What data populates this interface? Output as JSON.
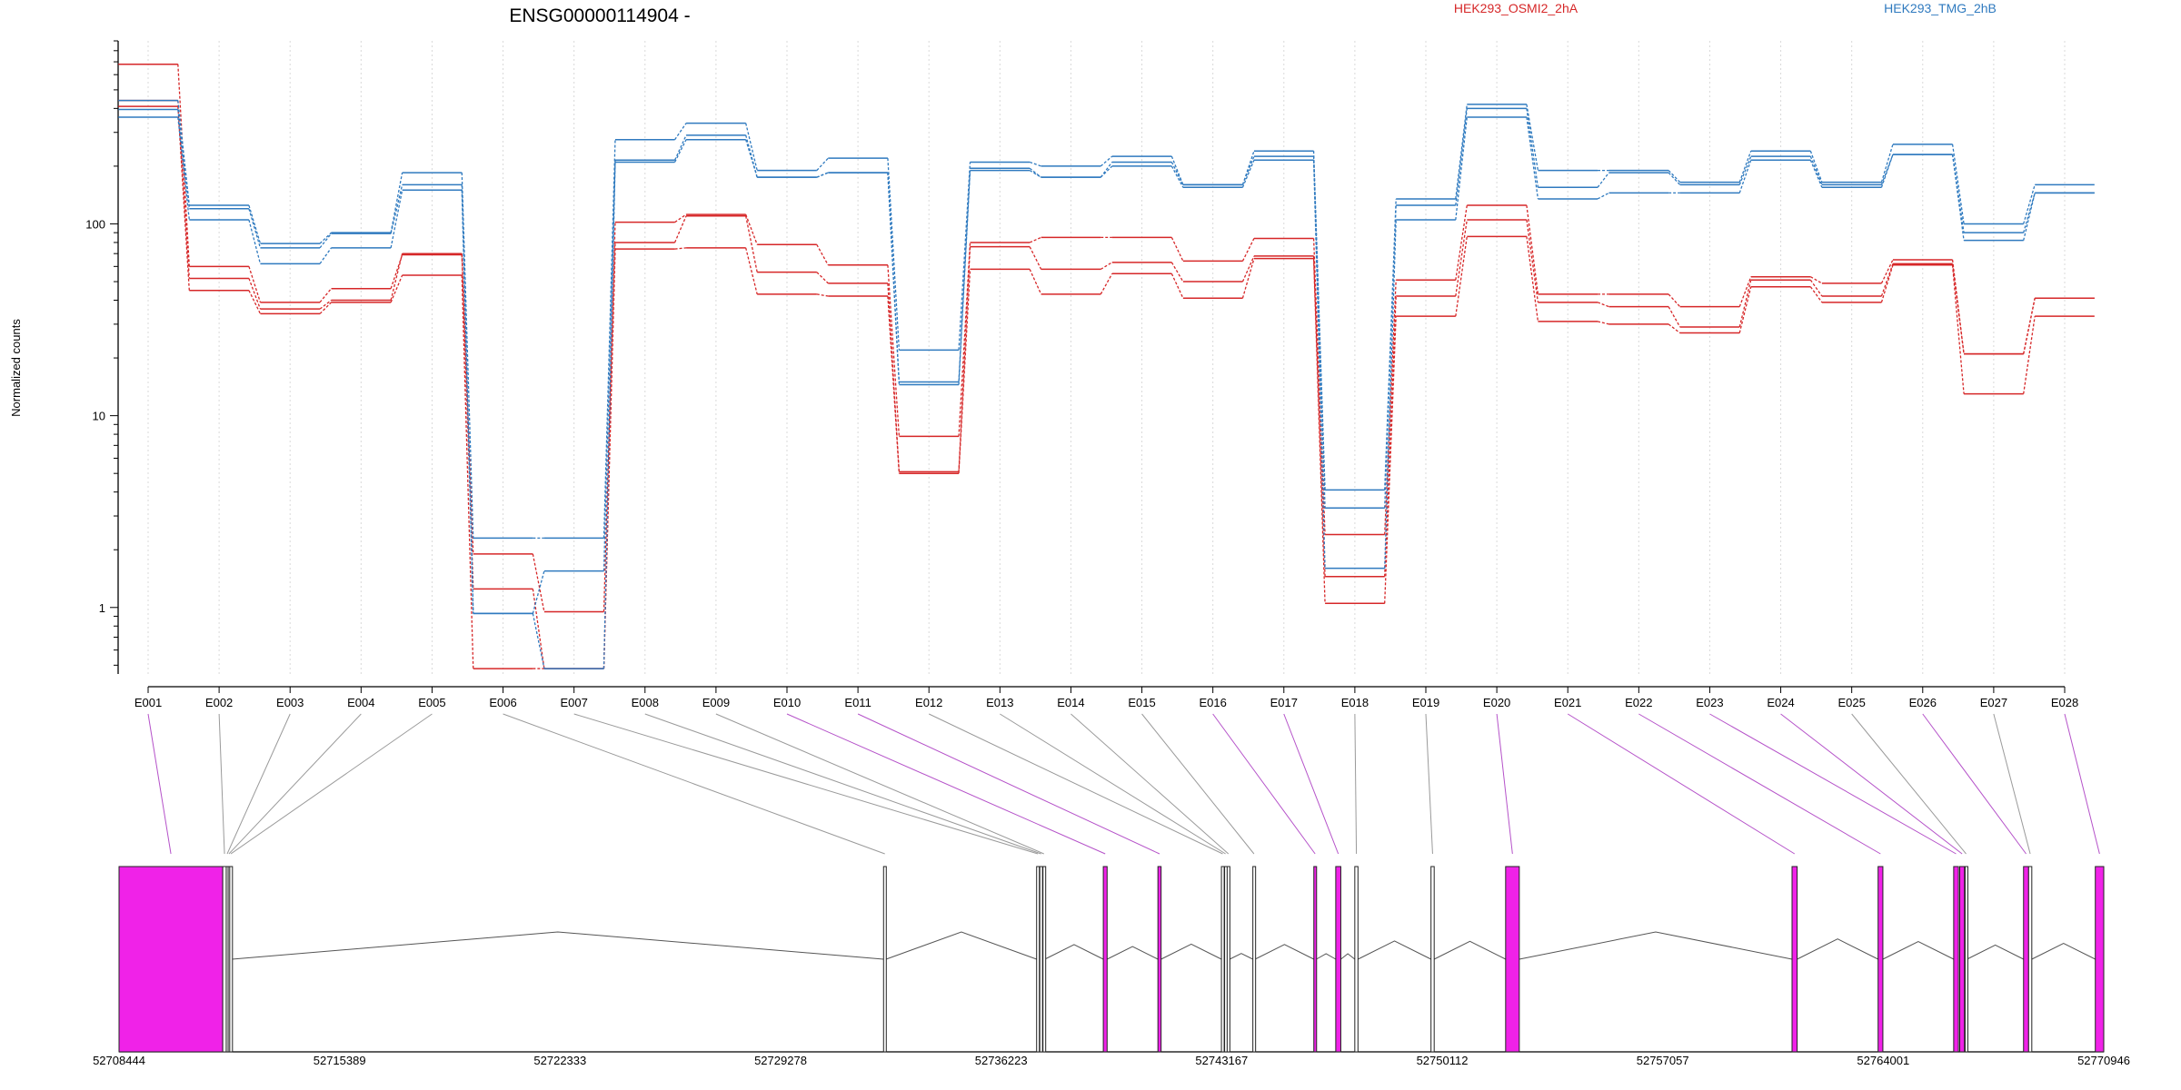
{
  "chart_data": {
    "type": "line",
    "title": "ENSG00000114904 -",
    "ylabel": "Normalized counts",
    "xlabel": "",
    "y_scale": "log",
    "y_ticks": [
      1,
      10,
      100
    ],
    "ylim": [
      0.45,
      900
    ],
    "grid": "vertical dotted at each exon",
    "legend": [
      {
        "name": "HEK293_OSMI2_2hA",
        "color": "#d62728"
      },
      {
        "name": "HEK293_TMG_2hB",
        "color": "#2f7abf"
      }
    ],
    "categories": [
      "E001",
      "E002",
      "E003",
      "E004",
      "E005",
      "E006",
      "E007",
      "E008",
      "E009",
      "E010",
      "E011",
      "E012",
      "E013",
      "E014",
      "E015",
      "E016",
      "E017",
      "E018",
      "E019",
      "E020",
      "E021",
      "E022",
      "E023",
      "E024",
      "E025",
      "E026",
      "E027",
      "E028"
    ],
    "series": [
      {
        "group": "HEK293_OSMI2_2hA",
        "color": "#d62728",
        "values": [
          680,
          60,
          39,
          46,
          69,
          1.9,
          0.95,
          102,
          112,
          78,
          61,
          7.8,
          80,
          85,
          85,
          64,
          84,
          2.4,
          51,
          125,
          43,
          43,
          37,
          53,
          49,
          65,
          21,
          41
        ]
      },
      {
        "group": "HEK293_OSMI2_2hA",
        "color": "#d62728",
        "values": [
          440,
          52,
          36,
          40,
          70,
          1.25,
          0.48,
          80,
          110,
          56,
          49,
          5.1,
          76,
          58,
          63,
          50,
          68,
          1.45,
          42,
          105,
          39,
          37,
          29,
          51,
          42,
          62,
          21,
          41
        ]
      },
      {
        "group": "HEK293_OSMI2_2hA",
        "color": "#d62728",
        "values": [
          410,
          45,
          34,
          39,
          54,
          0.48,
          0.48,
          74,
          75,
          43,
          42,
          5.0,
          58,
          43,
          55,
          41,
          66,
          1.05,
          33,
          86,
          31,
          30,
          27,
          47,
          39,
          61,
          13,
          33
        ]
      },
      {
        "group": "HEK293_TMG_2hB",
        "color": "#2f7abf",
        "values": [
          440,
          125,
          79,
          90,
          185,
          2.3,
          2.3,
          275,
          335,
          190,
          220,
          22,
          210,
          200,
          225,
          160,
          240,
          4.1,
          135,
          420,
          190,
          190,
          165,
          240,
          165,
          260,
          100,
          160
        ]
      },
      {
        "group": "HEK293_TMG_2hB",
        "color": "#2f7abf",
        "values": [
          395,
          120,
          75,
          89,
          160,
          0.93,
          1.55,
          215,
          290,
          175,
          185,
          15,
          195,
          175,
          210,
          160,
          225,
          3.3,
          125,
          400,
          155,
          185,
          160,
          225,
          160,
          230,
          90,
          145
        ]
      },
      {
        "group": "HEK293_TMG_2hB",
        "color": "#2f7abf",
        "values": [
          360,
          105,
          62,
          75,
          150,
          0.93,
          0.48,
          210,
          275,
          175,
          185,
          14.5,
          190,
          175,
          200,
          155,
          215,
          1.6,
          105,
          360,
          135,
          145,
          145,
          215,
          155,
          230,
          82,
          145
        ]
      }
    ],
    "gene_model": {
      "coordinate_ticks": [
        "52708444",
        "52715389",
        "52722333",
        "52729278",
        "52736223",
        "52743167",
        "52750112",
        "52757057",
        "52764001",
        "52770946"
      ],
      "exons": [
        {
          "id": "E001",
          "start": 52708444,
          "end": 52711710,
          "color": "#f022e8"
        },
        {
          "id": "E002",
          "start": 52711710,
          "end": 52711820,
          "color": "#ffffff"
        },
        {
          "id": "E003",
          "start": 52711820,
          "end": 52711880,
          "color": "#ffffff"
        },
        {
          "id": "E004",
          "start": 52711880,
          "end": 52711930,
          "color": "#ffffff"
        },
        {
          "id": "E005",
          "start": 52711930,
          "end": 52712000,
          "color": "#ffffff"
        },
        {
          "id": "E006",
          "start": 52732520,
          "end": 52732600,
          "color": "#ffffff"
        },
        {
          "id": "E007",
          "start": 52737340,
          "end": 52737420,
          "color": "#ffffff"
        },
        {
          "id": "E008",
          "start": 52737440,
          "end": 52737520,
          "color": "#ffffff"
        },
        {
          "id": "E009",
          "start": 52737540,
          "end": 52737600,
          "color": "#ffffff"
        },
        {
          "id": "E010",
          "start": 52739440,
          "end": 52739560,
          "color": "#f022e8"
        },
        {
          "id": "E011",
          "start": 52741160,
          "end": 52741260,
          "color": "#f022e8"
        },
        {
          "id": "E012",
          "start": 52743160,
          "end": 52743240,
          "color": "#ffffff"
        },
        {
          "id": "E013",
          "start": 52743260,
          "end": 52743320,
          "color": "#ffffff"
        },
        {
          "id": "E014",
          "start": 52743340,
          "end": 52743420,
          "color": "#ffffff"
        },
        {
          "id": "E015",
          "start": 52744150,
          "end": 52744220,
          "color": "#ffffff"
        },
        {
          "id": "E016",
          "start": 52746070,
          "end": 52746150,
          "color": "#f022e8"
        },
        {
          "id": "E017",
          "start": 52746760,
          "end": 52746920,
          "color": "#f022e8"
        },
        {
          "id": "E018",
          "start": 52747360,
          "end": 52747460,
          "color": "#ffffff"
        },
        {
          "id": "E019",
          "start": 52749760,
          "end": 52749860,
          "color": "#ffffff"
        },
        {
          "id": "E020",
          "start": 52752110,
          "end": 52752540,
          "color": "#f022e8"
        },
        {
          "id": "E021",
          "start": 52761130,
          "end": 52761290,
          "color": "#f022e8"
        },
        {
          "id": "E022",
          "start": 52763840,
          "end": 52763990,
          "color": "#f022e8"
        },
        {
          "id": "E023",
          "start": 52766220,
          "end": 52766370,
          "color": "#f022e8"
        },
        {
          "id": "E024",
          "start": 52766410,
          "end": 52766560,
          "color": "#f022e8"
        },
        {
          "id": "E025",
          "start": 52766580,
          "end": 52766640,
          "color": "#ffffff"
        },
        {
          "id": "E026",
          "start": 52768420,
          "end": 52768580,
          "color": "#f022e8"
        },
        {
          "id": "E027",
          "start": 52768580,
          "end": 52768680,
          "color": "#ffffff"
        },
        {
          "id": "E028",
          "start": 52770680,
          "end": 52770946,
          "color": "#f022e8"
        }
      ]
    }
  }
}
